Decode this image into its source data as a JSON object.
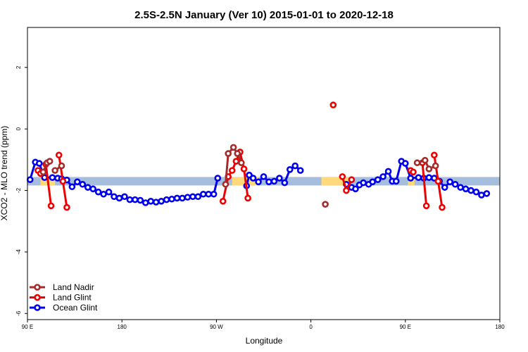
{
  "chart_data": {
    "type": "line",
    "title": "2.5S-2.5N January (Ver 10)   2015-01-01 to 2020-12-18",
    "xlabel": "Longitude",
    "ylabel": "XCO2 - MLO trend (ppm)",
    "xlim": [
      -90,
      270
    ],
    "ylim": [
      -6.2,
      3.3
    ],
    "x_ticks": [
      {
        "value": -90,
        "label": "90 E"
      },
      {
        "value": -18,
        "label": "180"
      },
      {
        "value": 54,
        "label": "90 W"
      },
      {
        "value": 126,
        "label": "0"
      },
      {
        "value": 198,
        "label": "90 E"
      },
      {
        "value": 270,
        "label": "180"
      }
    ],
    "y_ticks": [
      {
        "value": 2,
        "label": "2"
      },
      {
        "value": 0,
        "label": "0"
      },
      {
        "value": -2,
        "label": "-2"
      },
      {
        "value": -4,
        "label": "-4"
      },
      {
        "value": -6,
        "label": "-6"
      }
    ],
    "grid": false,
    "legend": "bottom-left",
    "bands": [
      {
        "y": -1.7,
        "x_range": [
          -90,
          270
        ],
        "color": "#a6bddb"
      },
      {
        "y": -1.7,
        "x_range": [
          -80,
          -69
        ],
        "color": "#ffd97a"
      },
      {
        "y": -1.7,
        "x_range": [
          66,
          86
        ],
        "color": "#ffd97a"
      },
      {
        "y": -1.7,
        "x_range": [
          134,
          155
        ],
        "color": "#ffd97a"
      },
      {
        "y": -1.7,
        "x_range": [
          200,
          205
        ],
        "color": "#ffd97a"
      }
    ],
    "series": [
      {
        "name": "Land Nadir",
        "color": "#a52a2a",
        "segments": [
          [
            [
              -78,
              -1.4
            ],
            [
              -75,
              -1.1
            ],
            [
              -73,
              -1.05
            ]
          ],
          [
            [
              -69,
              -1.35
            ],
            [
              -64,
              -1.2
            ]
          ],
          [
            [
              61,
              -1.8
            ],
            [
              63,
              -0.8
            ],
            [
              67,
              -0.6
            ],
            [
              70,
              -0.8
            ],
            [
              73,
              -1.1
            ]
          ],
          [
            [
              137,
              -2.45
            ]
          ],
          [
            [
              207,
              -1.1
            ],
            [
              213,
              -1.02
            ],
            [
              216,
              -1.3
            ],
            [
              221,
              -1.2
            ]
          ]
        ]
      },
      {
        "name": "Land Glint",
        "color": "#ee0000",
        "segments": [
          [
            [
              -82,
              -1.35
            ],
            [
              -80,
              -1.45
            ]
          ],
          [
            [
              -76,
              -1.15
            ],
            [
              -72,
              -2.5
            ]
          ],
          [
            [
              -66,
              -0.85
            ],
            [
              -63,
              -1.7
            ],
            [
              -60,
              -2.55
            ]
          ],
          [
            [
              59,
              -2.35
            ],
            [
              63,
              -1.55
            ],
            [
              66,
              -1.35
            ],
            [
              69,
              -1.05
            ],
            [
              72,
              -0.75
            ],
            [
              75,
              -1.3
            ],
            [
              78,
              -2.25
            ]
          ],
          [
            [
              143,
              0.78
            ]
          ],
          [
            [
              150,
              -1.55
            ],
            [
              153,
              -2.0
            ],
            [
              157,
              -1.65
            ]
          ],
          [
            [
              202,
              -1.35
            ],
            [
              204,
              -1.4
            ]
          ],
          [
            [
              211,
              -1.1
            ],
            [
              214,
              -2.5
            ]
          ],
          [
            [
              220,
              -0.85
            ],
            [
              223,
              -1.7
            ],
            [
              226,
              -2.55
            ]
          ]
        ]
      },
      {
        "name": "Ocean Glint",
        "color": "#0000ee",
        "segments": [
          [
            [
              -88,
              -1.65
            ],
            [
              -84,
              -1.08
            ],
            [
              -81,
              -1.12
            ],
            [
              -77,
              -1.58
            ],
            [
              -71,
              -1.58
            ],
            [
              -67,
              -1.6
            ],
            [
              -64,
              -1.62
            ],
            [
              -60,
              -1.66
            ],
            [
              -56,
              -1.88
            ],
            [
              -52,
              -1.72
            ],
            [
              -48,
              -1.8
            ],
            [
              -44,
              -1.9
            ],
            [
              -40,
              -1.95
            ],
            [
              -36,
              -2.05
            ],
            [
              -32,
              -2.12
            ],
            [
              -28,
              -2.05
            ],
            [
              -24,
              -2.2
            ],
            [
              -20,
              -2.25
            ],
            [
              -16,
              -2.2
            ],
            [
              -12,
              -2.3
            ],
            [
              -8,
              -2.3
            ],
            [
              -4,
              -2.32
            ],
            [
              0,
              -2.4
            ],
            [
              4,
              -2.35
            ],
            [
              8,
              -2.38
            ],
            [
              12,
              -2.35
            ],
            [
              16,
              -2.3
            ],
            [
              20,
              -2.28
            ],
            [
              24,
              -2.25
            ],
            [
              28,
              -2.25
            ],
            [
              32,
              -2.22
            ],
            [
              36,
              -2.2
            ],
            [
              40,
              -2.2
            ],
            [
              44,
              -2.12
            ],
            [
              48,
              -2.12
            ],
            [
              52,
              -2.12
            ],
            [
              55,
              -1.6
            ]
          ],
          [
            [
              77,
              -1.85
            ],
            [
              79,
              -1.5
            ],
            [
              82,
              -1.6
            ],
            [
              86,
              -1.72
            ],
            [
              90,
              -1.55
            ],
            [
              94,
              -1.72
            ],
            [
              98,
              -1.7
            ],
            [
              102,
              -1.6
            ],
            [
              106,
              -1.75
            ],
            [
              110,
              -1.32
            ],
            [
              114,
              -1.2
            ],
            [
              118,
              -1.35
            ]
          ],
          [
            [
              153,
              -1.8
            ],
            [
              157,
              -1.9
            ],
            [
              160,
              -1.95
            ],
            [
              163,
              -1.82
            ],
            [
              166,
              -1.75
            ],
            [
              170,
              -1.8
            ],
            [
              173,
              -1.72
            ],
            [
              177,
              -1.65
            ],
            [
              181,
              -1.55
            ],
            [
              185,
              -1.38
            ],
            [
              188,
              -1.7
            ],
            [
              191,
              -1.7
            ],
            [
              195,
              -1.05
            ],
            [
              198,
              -1.12
            ],
            [
              202,
              -1.6
            ],
            [
              208,
              -1.58
            ],
            [
              212,
              -1.6
            ],
            [
              216,
              -1.58
            ],
            [
              220,
              -1.6
            ],
            [
              224,
              -1.7
            ],
            [
              228,
              -1.9
            ],
            [
              232,
              -1.72
            ],
            [
              236,
              -1.8
            ],
            [
              240,
              -1.9
            ],
            [
              244,
              -1.95
            ],
            [
              248,
              -2.0
            ],
            [
              252,
              -2.05
            ],
            [
              256,
              -2.15
            ],
            [
              260,
              -2.1
            ]
          ]
        ]
      }
    ]
  }
}
